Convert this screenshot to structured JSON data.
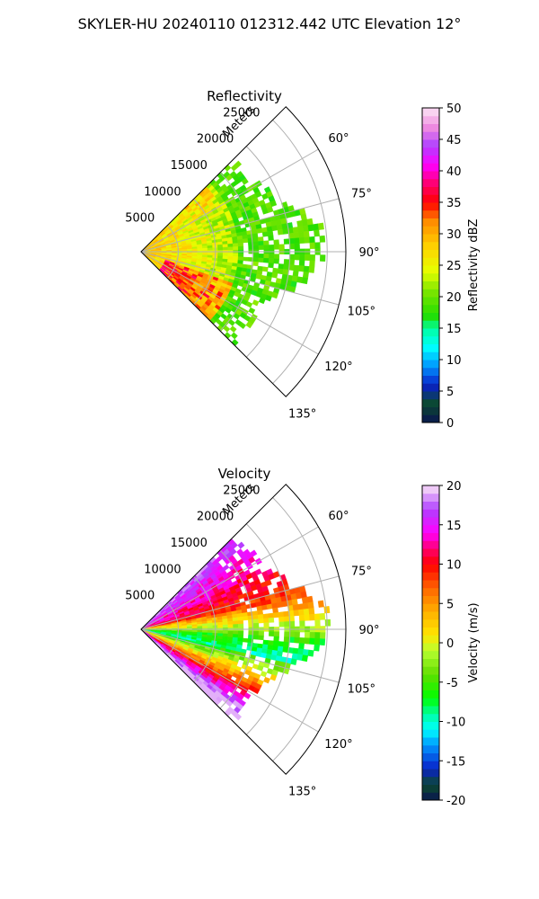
{
  "figure": {
    "suptitle": "SKYLER-HU  20240110  012312.442 UTC Elevation 12°"
  },
  "chart_data": [
    {
      "type": "heatmap",
      "projection": "polar-sector",
      "title": "Reflectivity",
      "radial_label": "Meters",
      "radial_ticks": [
        "5000",
        "10000",
        "15000",
        "20000",
        "25000"
      ],
      "radial_tick_values": [
        5000,
        10000,
        15000,
        20000,
        25000
      ],
      "r_max": 27500,
      "azimuth_range": [
        45,
        135
      ],
      "azimuth_ticks": [
        "60°",
        "75°",
        "90°",
        "105°",
        "120°",
        "135°"
      ],
      "azimuth_tick_values": [
        60,
        75,
        90,
        105,
        120,
        135
      ],
      "grid": true,
      "colorbar": {
        "label": "Reflectivity dBZ",
        "range": [
          0,
          50
        ],
        "ticks": [
          "0",
          "5",
          "10",
          "15",
          "20",
          "25",
          "30",
          "35",
          "40",
          "45",
          "50"
        ],
        "tick_values": [
          0,
          5,
          10,
          15,
          20,
          25,
          30,
          35,
          40,
          45,
          50
        ],
        "stops": [
          {
            "v": 0,
            "c": "#0a1450"
          },
          {
            "v": 3,
            "c": "#0b4a2f"
          },
          {
            "v": 6,
            "c": "#0a20c8"
          },
          {
            "v": 9,
            "c": "#0096ff"
          },
          {
            "v": 12,
            "c": "#00ffff"
          },
          {
            "v": 15,
            "c": "#00ffa0"
          },
          {
            "v": 17,
            "c": "#22dd00"
          },
          {
            "v": 21,
            "c": "#7fe600"
          },
          {
            "v": 24,
            "c": "#e6ff00"
          },
          {
            "v": 28,
            "c": "#ffd200"
          },
          {
            "v": 32,
            "c": "#ff8c00"
          },
          {
            "v": 35,
            "c": "#ff0000"
          },
          {
            "v": 38,
            "c": "#ff0070"
          },
          {
            "v": 41,
            "c": "#ff00ff"
          },
          {
            "v": 44,
            "c": "#b040ff"
          },
          {
            "v": 47,
            "c": "#f08ce0"
          },
          {
            "v": 50,
            "c": "#fbe6f6"
          }
        ]
      }
    },
    {
      "type": "heatmap",
      "projection": "polar-sector",
      "title": "Velocity",
      "radial_label": "Meters",
      "radial_ticks": [
        "5000",
        "10000",
        "15000",
        "20000",
        "25000"
      ],
      "radial_tick_values": [
        5000,
        10000,
        15000,
        20000,
        25000
      ],
      "r_max": 27500,
      "azimuth_range": [
        45,
        135
      ],
      "azimuth_ticks": [
        "60°",
        "75°",
        "90°",
        "105°",
        "120°",
        "135°"
      ],
      "azimuth_tick_values": [
        60,
        75,
        90,
        105,
        120,
        135
      ],
      "grid": true,
      "colorbar": {
        "label": "Velocity (m/s)",
        "range": [
          -20,
          20
        ],
        "ticks": [
          "-20",
          "-15",
          "-10",
          "-5",
          "0",
          "5",
          "10",
          "15",
          "20"
        ],
        "tick_values": [
          -20,
          -15,
          -10,
          -5,
          0,
          5,
          10,
          15,
          20
        ],
        "stops": [
          {
            "v": -20,
            "c": "#0a1450"
          },
          {
            "v": -18,
            "c": "#0b4a2f"
          },
          {
            "v": -16,
            "c": "#0a20c8"
          },
          {
            "v": -13,
            "c": "#0096ff"
          },
          {
            "v": -11,
            "c": "#00ffff"
          },
          {
            "v": -9,
            "c": "#00ffa0"
          },
          {
            "v": -7,
            "c": "#00ff00"
          },
          {
            "v": -4,
            "c": "#60dd00"
          },
          {
            "v": -1,
            "c": "#b8ff30"
          },
          {
            "v": 1,
            "c": "#ffe600"
          },
          {
            "v": 4,
            "c": "#ffb000"
          },
          {
            "v": 7,
            "c": "#ff6400"
          },
          {
            "v": 10,
            "c": "#ff0000"
          },
          {
            "v": 12,
            "c": "#ff0070"
          },
          {
            "v": 14,
            "c": "#ff00ff"
          },
          {
            "v": 17,
            "c": "#b040ff"
          },
          {
            "v": 20,
            "c": "#fbe6f6"
          }
        ]
      }
    }
  ]
}
